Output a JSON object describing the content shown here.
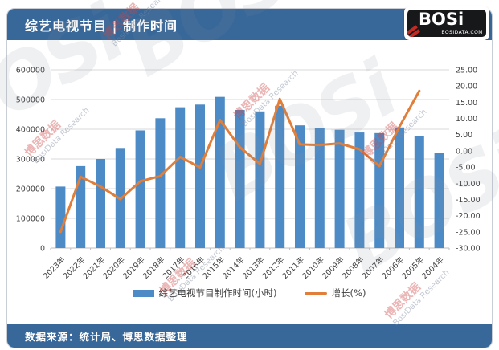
{
  "header": {
    "title": "综艺电视节目 | 制作时间",
    "logo_text": "BOSi",
    "logo_subtext": "BOSIDATA.COM"
  },
  "legend": {
    "bar_label": "综艺电视节目制作时间(小时)",
    "line_label": "增长(%)"
  },
  "footer": {
    "source_text": "数据来源：统计局、博思数据整理"
  },
  "watermarks": {
    "large_text": "BOSi",
    "small_line1": "博思数据",
    "small_line2": "BosiData Research"
  },
  "colors": {
    "header_bg": "#38689A",
    "bar": "#4D8BC7",
    "line": "#E07E3A",
    "gridline": "#D9D9D9",
    "baseline": "#BFBFBF",
    "axis_text": "#3F3F3F"
  },
  "chart_data": {
    "type": "bar+line combo",
    "title": "综艺电视节目 | 制作时间",
    "categories": [
      "2023年",
      "2022年",
      "2021年",
      "2020年",
      "2019年",
      "2018年",
      "2017年",
      "2016年",
      "2015年",
      "2014年",
      "2013年",
      "2012年",
      "2011年",
      "2010年",
      "2009年",
      "2008年",
      "2007年",
      "2006年",
      "2005年",
      "2004年"
    ],
    "series": [
      {
        "name": "综艺电视节目制作时间(小时)",
        "type": "bar",
        "axis": "left",
        "color": "#4D8BC7",
        "values": [
          207000,
          276000,
          300000,
          337000,
          396000,
          437000,
          474000,
          483000,
          509000,
          465000,
          460000,
          479000,
          413000,
          405000,
          398000,
          389000,
          387000,
          406000,
          378000,
          319000
        ]
      },
      {
        "name": "增长(%)",
        "type": "line",
        "axis": "right",
        "color": "#E07E3A",
        "values": [
          -25.0,
          -8.0,
          -11.0,
          -14.9,
          -9.4,
          -7.8,
          -1.9,
          -5.1,
          9.5,
          1.1,
          -4.0,
          16.0,
          2.0,
          1.8,
          2.3,
          0.5,
          -4.7,
          7.4,
          18.5,
          null
        ]
      }
    ],
    "left_axis": {
      "min": 0,
      "max": 600000,
      "step": 100000
    },
    "right_axis": {
      "min": -30,
      "max": 25,
      "step": 5,
      "decimals": 2
    },
    "grid": true,
    "legend_position": "bottom",
    "x_label_rotation": -45
  }
}
